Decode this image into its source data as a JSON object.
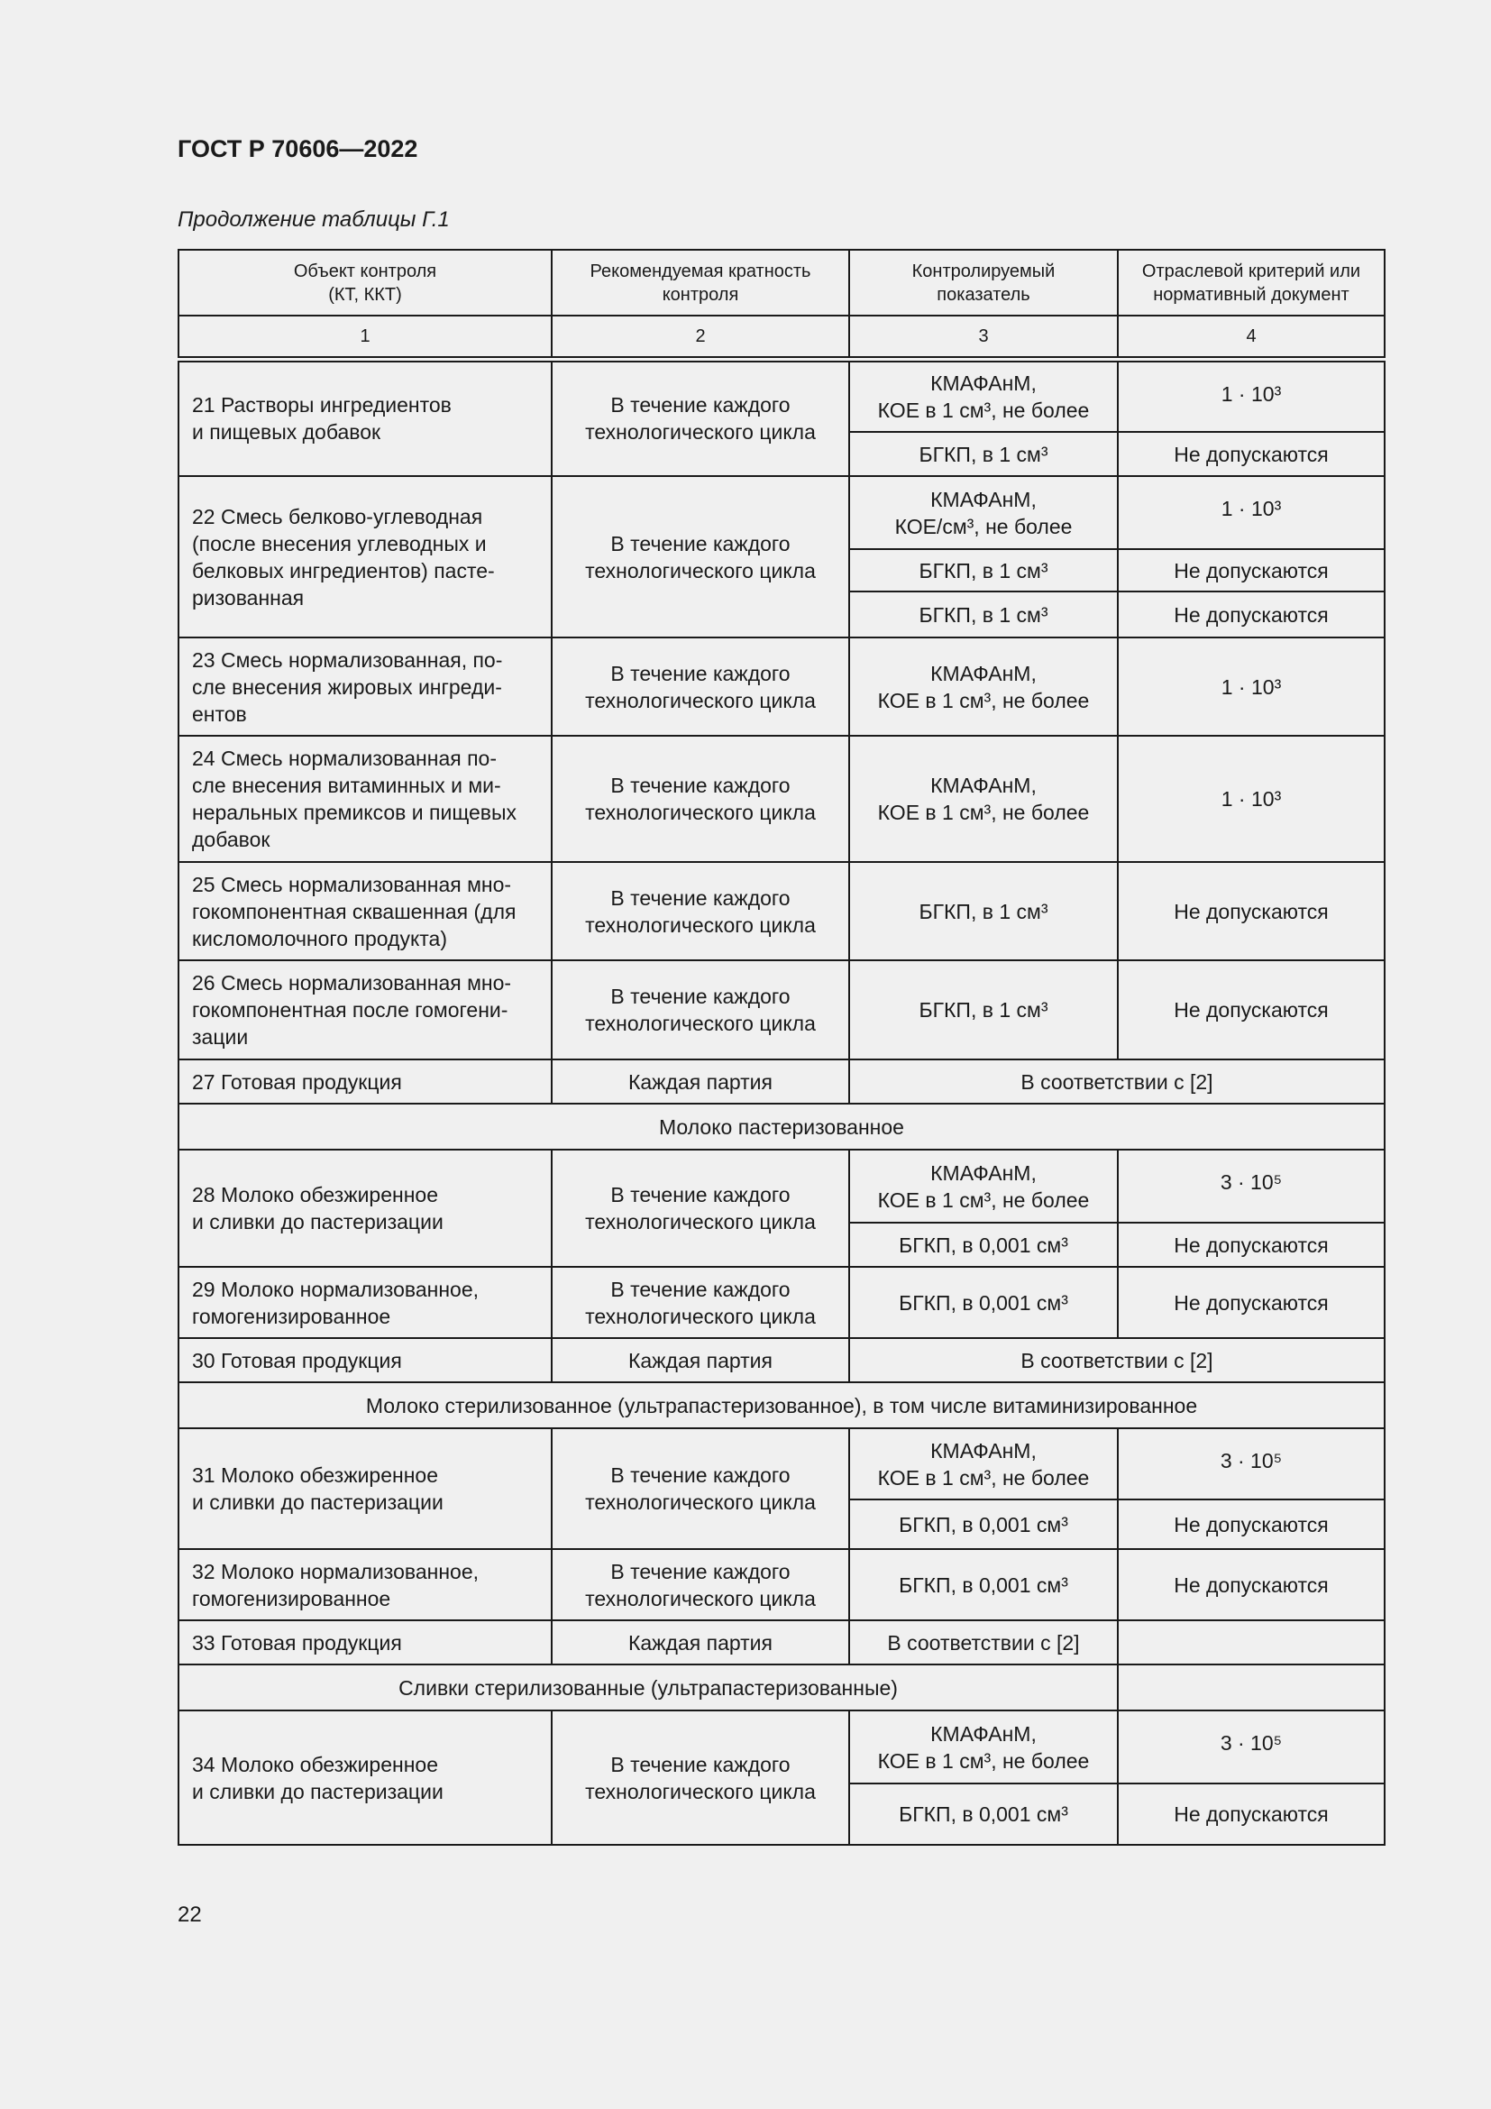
{
  "document": {
    "title": "ГОСТ Р 70606—2022",
    "caption": "Продолжение таблицы Г.1",
    "page_number": "22"
  },
  "table": {
    "headers": [
      "Объект контроля\n(КТ, ККТ)",
      "Рекомендуемая кратность\nконтроля",
      "Контролируемый\nпоказатель",
      "Отраслевой критерий или\nнормативный документ"
    ],
    "column_numbers": [
      "1",
      "2",
      "3",
      "4"
    ],
    "rows": [
      {
        "type": "item",
        "object": "21 Растворы ингредиентов\nи пищевых добавок",
        "frequency": "В течение каждого\nтехнологического цикла",
        "checks": [
          {
            "indicator": "КМАФАнМ,\nКОЕ в 1 см³, не более",
            "criterion": "1 · 10³"
          },
          {
            "indicator": "БГКП, в 1 см³",
            "criterion": "Не допускаются"
          }
        ]
      },
      {
        "type": "item",
        "object": "22 Смесь белково-углеводная\n(после внесения углеводных и\nбелковых ингредиентов) пасте-\nризованная",
        "frequency": "В течение каждого\nтехнологического цикла",
        "checks": [
          {
            "indicator": "КМАФАнМ,\nКОЕ/см³, не более",
            "criterion": "1 · 10³"
          },
          {
            "indicator": "БГКП, в 1 см³",
            "criterion": "Не допускаются"
          },
          {
            "indicator": "БГКП, в 1 см³",
            "criterion": "Не допускаются"
          }
        ]
      },
      {
        "type": "item",
        "object": "23 Смесь нормализованная, по-\nсле внесения жировых ингреди-\nентов",
        "frequency": "В течение каждого\nтехнологического цикла",
        "checks": [
          {
            "indicator": "КМАФАнМ,\nКОЕ в 1 см³, не более",
            "criterion": "1 · 10³"
          }
        ]
      },
      {
        "type": "item",
        "object": "24 Смесь нормализованная по-\nсле внесения витаминных и ми-\nнеральных премиксов и пищевых\nдобавок",
        "frequency": "В течение каждого\nтехнологического цикла",
        "checks": [
          {
            "indicator": "КМАФАнМ,\nКОЕ в 1 см³, не более",
            "criterion": "1 · 10³"
          }
        ]
      },
      {
        "type": "item",
        "object": "25 Смесь нормализованная мно-\nгокомпонентная сквашенная (для\nкисломолочного продукта)",
        "frequency": "В течение каждого\nтехнологического цикла",
        "checks": [
          {
            "indicator": "БГКП, в 1 см³",
            "criterion": "Не допускаются"
          }
        ]
      },
      {
        "type": "item",
        "object": "26 Смесь нормализованная мно-\nгокомпонентная после гомогени-\nзации",
        "frequency": "В течение каждого\nтехнологического цикла",
        "checks": [
          {
            "indicator": "БГКП, в 1 см³",
            "criterion": "Не допускаются"
          }
        ]
      },
      {
        "type": "merged",
        "object": "27 Готовая продукция",
        "frequency": "Каждая партия",
        "merged": "В соответствии с [2]"
      },
      {
        "type": "section",
        "title": "Молоко пастеризованное"
      },
      {
        "type": "item",
        "object": "28 Молоко обезжиренное\nи сливки до пастеризации",
        "frequency": "В течение каждого\nтехнологического цикла",
        "checks": [
          {
            "indicator": "КМАФАнМ,\nКОЕ в 1 см³, не более",
            "criterion": "3 · 10⁵"
          },
          {
            "indicator": "БГКП, в 0,001 см³",
            "criterion": "Не допускаются"
          }
        ]
      },
      {
        "type": "item",
        "object": "29 Молоко нормализованное,\nгомогенизированное",
        "frequency": "В течение каждого\nтехнологического цикла",
        "checks": [
          {
            "indicator": "БГКП, в 0,001 см³",
            "criterion": "Не допускаются"
          }
        ]
      },
      {
        "type": "merged",
        "object": "30 Готовая продукция",
        "frequency": "Каждая партия",
        "merged": "В соответствии с [2]"
      },
      {
        "type": "section",
        "title": "Молоко стерилизованное (ультрапастеризованное), в том числе витаминизированное"
      },
      {
        "type": "item",
        "object": "31 Молоко обезжиренное\nи сливки до пастеризации",
        "frequency": "В течение каждого\nтехнологического цикла",
        "checks": [
          {
            "indicator": "КМАФАнМ,\nКОЕ в 1 см³, не более",
            "criterion": "3 · 10⁵"
          },
          {
            "indicator": "БГКП, в 0,001 см³",
            "criterion": "Не допускаются"
          }
        ]
      },
      {
        "type": "item",
        "object": "32 Молоко нормализованное,\nгомогенизированное",
        "frequency": "В течение каждого\nтехнологического цикла",
        "checks": [
          {
            "indicator": "БГКП, в 0,001 см³",
            "criterion": "Не допускаются"
          }
        ]
      },
      {
        "type": "item",
        "object": "33 Готовая продукция",
        "frequency": "Каждая партия",
        "checks": [
          {
            "indicator": "В соответствии с [2]",
            "criterion": ""
          }
        ]
      },
      {
        "type": "section3",
        "title": "Сливки стерилизованные (ультрапастеризованные)"
      },
      {
        "type": "item",
        "object": "34 Молоко обезжиренное\nи сливки до пастеризации",
        "frequency": "В течение каждого\nтехнологического цикла",
        "checks": [
          {
            "indicator": "КМАФАнМ,\nКОЕ в 1 см³, не более",
            "criterion": "3 · 10⁵"
          },
          {
            "indicator": "БГКП, в 0,001 см³",
            "criterion": "Не допускаются"
          }
        ]
      }
    ]
  }
}
